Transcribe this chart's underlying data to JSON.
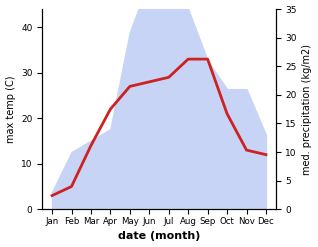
{
  "months": [
    "Jan",
    "Feb",
    "Mar",
    "Apr",
    "May",
    "Jun",
    "Jul",
    "Aug",
    "Sep",
    "Oct",
    "Nov",
    "Dec"
  ],
  "temperature": [
    3,
    5,
    14,
    22,
    27,
    28,
    29,
    33,
    33,
    21,
    13,
    12
  ],
  "precipitation": [
    3,
    10,
    12,
    14,
    31,
    40,
    36,
    35,
    26,
    21,
    21,
    13
  ],
  "temp_color": "#cc2222",
  "precip_fill_color": "#c8d4f5",
  "xlabel": "date (month)",
  "ylabel_left": "max temp (C)",
  "ylabel_right": "med. precipitation (kg/m2)",
  "ylim_left": [
    0,
    44
  ],
  "ylim_right": [
    0,
    34
  ],
  "yticks_left": [
    0,
    10,
    20,
    30,
    40
  ],
  "yticks_right": [
    0,
    5,
    10,
    15,
    20,
    25,
    30,
    35
  ],
  "background_color": "#ffffff",
  "line_width": 2.0
}
